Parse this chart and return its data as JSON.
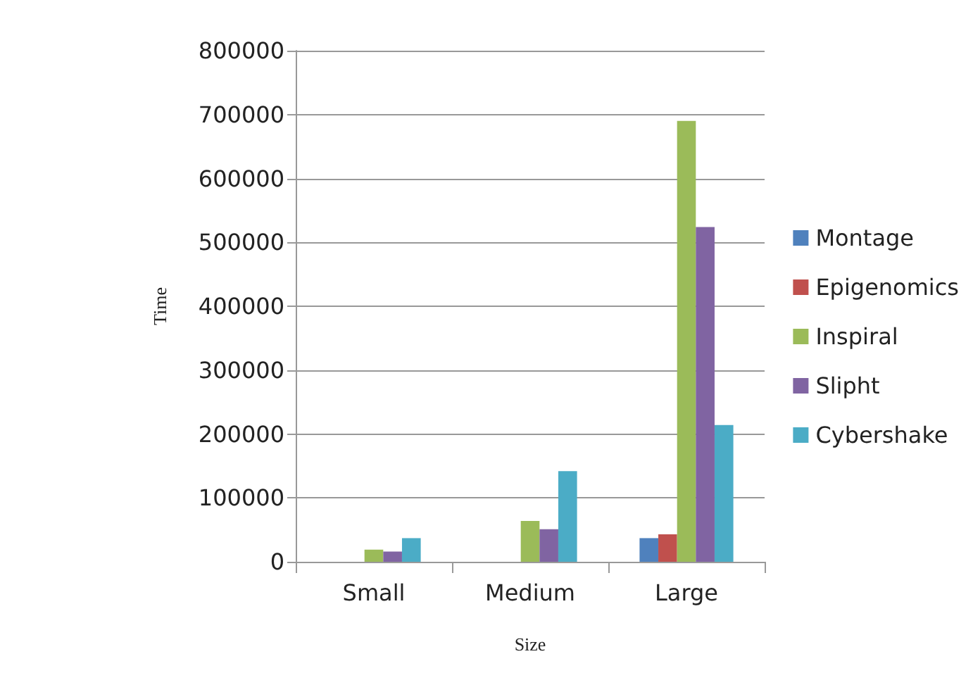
{
  "chart_data": {
    "type": "bar",
    "xlabel": "Size",
    "ylabel": "Time",
    "categories": [
      "Small",
      "Medium",
      "Large"
    ],
    "series": [
      {
        "name": "Montage",
        "color": "#4f81bd",
        "values": [
          0,
          0,
          37000
        ]
      },
      {
        "name": "Epigenomics",
        "color": "#c0504d",
        "values": [
          0,
          0,
          43000
        ]
      },
      {
        "name": "Inspiral",
        "color": "#9bbb59",
        "values": [
          19000,
          64000,
          690000
        ]
      },
      {
        "name": "Slipht",
        "color": "#8064a2",
        "values": [
          16000,
          51000,
          524000
        ]
      },
      {
        "name": "Cybershake",
        "color": "#4bacc6",
        "values": [
          37000,
          142000,
          214000
        ]
      }
    ],
    "ylim": [
      0,
      800000
    ],
    "yticks": [
      0,
      100000,
      200000,
      300000,
      400000,
      500000,
      600000,
      700000,
      800000
    ],
    "grid": "y",
    "legend": "right"
  }
}
